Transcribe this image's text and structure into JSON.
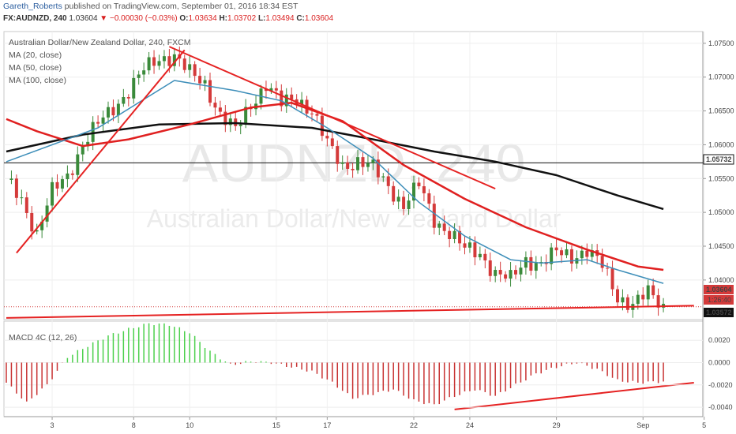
{
  "header": {
    "author": "Gareth_Roberts",
    "published": "published on TradingView.com, September 01, 2016 18:34 EST",
    "symbol": "FX:AUDNZD, 240",
    "last": "1.03604",
    "change": "−0.00030 (−0.03%)",
    "open_label": "O:",
    "open": "1.03634",
    "high_label": "H:",
    "high": "1.03702",
    "low_label": "L:",
    "low": "1.03494",
    "close_label": "C:",
    "close": "1.03604"
  },
  "watermark": {
    "ticker": "AUDNZD, 240",
    "name": "Australian Dollar/New Zealand Dollar"
  },
  "main_panel": {
    "title": "Australian Dollar/New Zealand Dollar, 240, FXCM",
    "indicators": [
      "MA (20, close)",
      "MA (50, close)",
      "MA (100, close)"
    ]
  },
  "macd_panel": {
    "title": "MACD 4C (12, 26)"
  },
  "price_tags": {
    "level": "1.05732",
    "current": "1.03604",
    "countdown": "1:26:40",
    "low": "1.03572"
  },
  "colors": {
    "bull": "#3a8a3a",
    "bear": "#d43a3a",
    "ma20": "#3d8eb9",
    "ma50": "#e02020",
    "ma100": "#111111",
    "trend": "#e52222",
    "macd_up": "#4cd04c",
    "macd_dn": "#c83232"
  },
  "chart_data": [
    {
      "type": "candlestick",
      "title": "Australian Dollar/New Zealand Dollar, 240, FXCM",
      "x_ticks": [
        "3",
        "8",
        "10",
        "15",
        "17",
        "22",
        "24",
        "29",
        "Sep",
        "5"
      ],
      "y_ticks": [
        "1.07500",
        "1.07000",
        "1.06500",
        "1.06000",
        "1.05500",
        "1.05000",
        "1.04500",
        "1.04000"
      ],
      "ylim": [
        1.0345,
        1.0765
      ],
      "close_path": [
        [
          0,
          1.0548
        ],
        [
          3,
          1.052
        ],
        [
          6,
          1.0468
        ],
        [
          9,
          1.053
        ],
        [
          12,
          1.0555
        ],
        [
          15,
          1.06
        ],
        [
          18,
          1.063
        ],
        [
          21,
          1.0655
        ],
        [
          24,
          1.068
        ],
        [
          27,
          1.071
        ],
        [
          30,
          1.0728
        ],
        [
          33,
          1.0732
        ],
        [
          36,
          1.0705
        ],
        [
          39,
          1.069
        ],
        [
          42,
          1.0645
        ],
        [
          45,
          1.062
        ],
        [
          48,
          1.066
        ],
        [
          51,
          1.069
        ],
        [
          54,
          1.066
        ],
        [
          57,
          1.067
        ],
        [
          60,
          1.065
        ],
        [
          63,
          1.06
        ],
        [
          66,
          1.057
        ],
        [
          69,
          1.0575
        ],
        [
          72,
          1.0565
        ],
        [
          75,
          1.054
        ],
        [
          78,
          1.051
        ],
        [
          81,
          1.054
        ],
        [
          84,
          1.049
        ],
        [
          87,
          1.047
        ],
        [
          90,
          1.0445
        ],
        [
          93,
          1.044
        ],
        [
          96,
          1.041
        ],
        [
          99,
          1.04
        ],
        [
          102,
          1.043
        ],
        [
          105,
          1.0425
        ],
        [
          108,
          1.044
        ],
        [
          111,
          1.0435
        ],
        [
          114,
          1.0445
        ],
        [
          117,
          1.042
        ],
        [
          120,
          1.0375
        ],
        [
          123,
          1.0365
        ],
        [
          126,
          1.038
        ],
        [
          129,
          1.036
        ]
      ],
      "ma20": [
        [
          0,
          1.0575
        ],
        [
          18,
          1.0625
        ],
        [
          33,
          1.0695
        ],
        [
          45,
          1.068
        ],
        [
          54,
          1.0665
        ],
        [
          63,
          1.0625
        ],
        [
          72,
          1.058
        ],
        [
          81,
          1.0515
        ],
        [
          90,
          1.0465
        ],
        [
          99,
          1.043
        ],
        [
          105,
          1.0425
        ],
        [
          114,
          1.043
        ],
        [
          120,
          1.0415
        ],
        [
          129,
          1.0395
        ]
      ],
      "ma50": [
        [
          0,
          1.0638
        ],
        [
          6,
          1.062
        ],
        [
          15,
          1.0598
        ],
        [
          24,
          1.0608
        ],
        [
          36,
          1.063
        ],
        [
          48,
          1.0655
        ],
        [
          56,
          1.0662
        ],
        [
          66,
          1.0635
        ],
        [
          78,
          1.057
        ],
        [
          90,
          1.052
        ],
        [
          102,
          1.0478
        ],
        [
          114,
          1.0445
        ],
        [
          124,
          1.042
        ],
        [
          129,
          1.0415
        ]
      ],
      "ma100": [
        [
          0,
          1.059
        ],
        [
          15,
          1.0615
        ],
        [
          30,
          1.063
        ],
        [
          45,
          1.0632
        ],
        [
          60,
          1.0625
        ],
        [
          72,
          1.0608
        ],
        [
          84,
          1.059
        ],
        [
          96,
          1.0575
        ],
        [
          108,
          1.0555
        ],
        [
          120,
          1.0525
        ],
        [
          129,
          1.0505
        ]
      ],
      "trend_lines": [
        {
          "from": [
            2,
            1.044
          ],
          "to": [
            35,
            1.074
          ]
        },
        {
          "from": [
            32,
            1.0745
          ],
          "to": [
            96,
            1.0535
          ]
        },
        {
          "from": [
            0,
            1.0344
          ],
          "to": [
            135,
            1.0362
          ]
        }
      ],
      "horizontal_level": 1.05732
    },
    {
      "type": "bar",
      "title": "MACD 4C (12, 26)",
      "y_ticks": [
        "0.0020",
        "0.0000",
        "-0.0020",
        "-0.0040"
      ],
      "ylim": [
        -0.0047,
        0.0035
      ],
      "histogram_path": [
        [
          0,
          -0.0018
        ],
        [
          4,
          -0.0036
        ],
        [
          8,
          -0.002
        ],
        [
          12,
          0.0005
        ],
        [
          16,
          0.0015
        ],
        [
          20,
          0.0024
        ],
        [
          24,
          0.003
        ],
        [
          28,
          0.0035
        ],
        [
          32,
          0.0034
        ],
        [
          36,
          0.0027
        ],
        [
          40,
          0.001
        ],
        [
          44,
          -0.0002
        ],
        [
          48,
          0.0001
        ],
        [
          52,
          0.0
        ],
        [
          56,
          -0.0004
        ],
        [
          60,
          -0.0008
        ],
        [
          64,
          -0.0018
        ],
        [
          68,
          -0.0032
        ],
        [
          72,
          -0.0028
        ],
        [
          76,
          -0.0024
        ],
        [
          80,
          -0.0034
        ],
        [
          84,
          -0.0038
        ],
        [
          88,
          -0.003
        ],
        [
          92,
          -0.0024
        ],
        [
          96,
          -0.003
        ],
        [
          100,
          -0.002
        ],
        [
          104,
          -0.001
        ],
        [
          108,
          -0.0004
        ],
        [
          112,
          0.0
        ],
        [
          116,
          -0.0006
        ],
        [
          120,
          -0.0016
        ],
        [
          124,
          -0.0018
        ],
        [
          129,
          -0.0017
        ]
      ],
      "trend_line": {
        "from": [
          88,
          -0.0042
        ],
        "to": [
          135,
          -0.0018
        ]
      }
    }
  ]
}
